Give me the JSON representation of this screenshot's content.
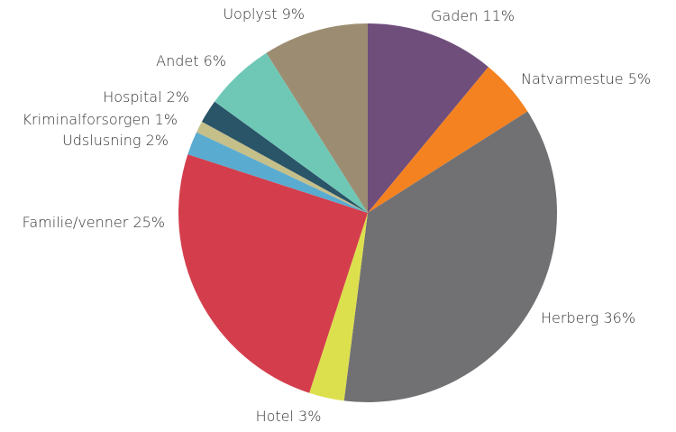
{
  "chart_data": {
    "type": "pie",
    "categories": [
      "Gaden",
      "Natvarmestue",
      "Herberg",
      "Hotel",
      "Familie/venner",
      "Udslusning",
      "Kriminalforsorgen",
      "Hospital",
      "Andet",
      "Uoplyst"
    ],
    "values": [
      11,
      5,
      36,
      3,
      25,
      2,
      1,
      2,
      6,
      9
    ],
    "value_labels": [
      "11%",
      "5%",
      "36%",
      "3%",
      "25%",
      "2%",
      "1%",
      "2%",
      "6%",
      "9%"
    ],
    "colors": [
      "#6f4e7c",
      "#f58220",
      "#717174",
      "#dde04d",
      "#d43e4c",
      "#5aabd0",
      "#c5bf8a",
      "#2a5468",
      "#6fc8b6",
      "#9c8d72"
    ]
  }
}
